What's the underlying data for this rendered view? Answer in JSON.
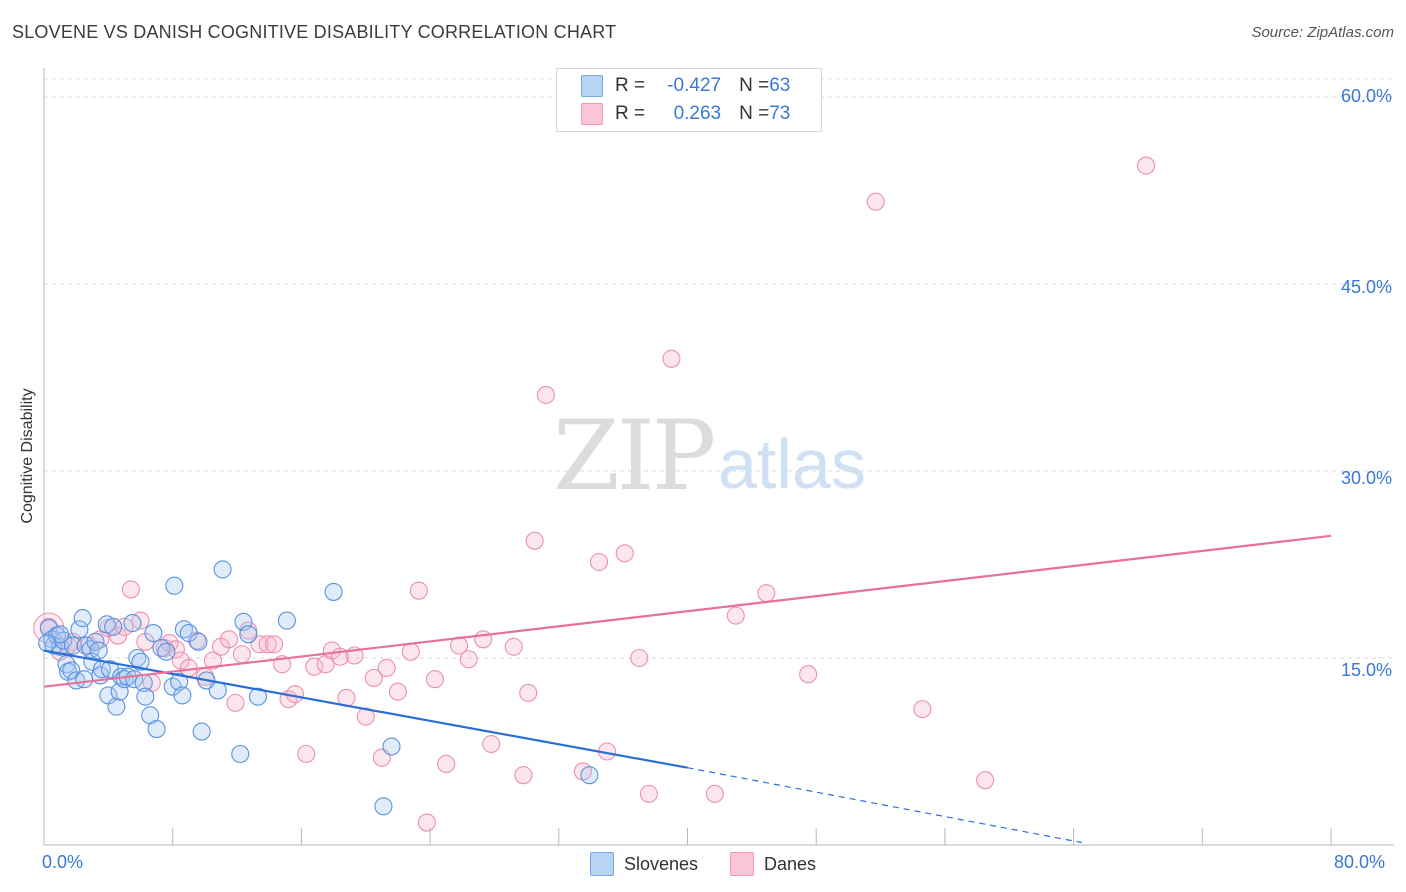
{
  "header": {
    "title": "SLOVENE VS DANISH COGNITIVE DISABILITY CORRELATION CHART",
    "source": "Source: ZipAtlas.com"
  },
  "watermark": {
    "zip": "ZIP",
    "atlas": "atlas"
  },
  "legend": {
    "rows": [
      {
        "r_label": "R = ",
        "r_value": "-0.427",
        "n_label": "N = ",
        "n_value": "63",
        "color": "#6fa2e8"
      },
      {
        "r_label": "R = ",
        "r_value": "0.263",
        "n_label": "N = ",
        "n_value": "73",
        "color": "#f2a1bb"
      }
    ]
  },
  "bottom_legend": {
    "series1": "Slovenes",
    "series2": "Danes"
  },
  "chart_data": {
    "type": "scatter",
    "title": "SLOVENE VS DANISH COGNITIVE DISABILITY CORRELATION CHART",
    "xlabel": "",
    "ylabel": "Cognitive Disability",
    "xlim": [
      0,
      80
    ],
    "ylim": [
      0,
      62
    ],
    "x_tick_labels": [
      "0.0%",
      "80.0%"
    ],
    "y_ticks": [
      15,
      30,
      45,
      60
    ],
    "y_tick_labels": [
      "15.0%",
      "30.0%",
      "45.0%",
      "60.0%"
    ],
    "grid": true,
    "series": [
      {
        "name": "Slovenes",
        "color": "#6fa2e8",
        "line_color": "#2a6fd6",
        "trend": {
          "x0": 0,
          "y0": 15.6,
          "x1": 40,
          "y1": 6.2,
          "dash_to_x": 64.5,
          "dash_to_y": 0.2
        },
        "points": [
          [
            0.3,
            17.4
          ],
          [
            0.5,
            16.5
          ],
          [
            0.6,
            16.0
          ],
          [
            0.8,
            16.8
          ],
          [
            1.0,
            15.9
          ],
          [
            1.2,
            16.4
          ],
          [
            1.4,
            14.5
          ],
          [
            1.5,
            13.9
          ],
          [
            1.7,
            14.0
          ],
          [
            1.8,
            16.0
          ],
          [
            2.0,
            13.2
          ],
          [
            2.2,
            17.3
          ],
          [
            2.4,
            18.2
          ],
          [
            2.5,
            13.3
          ],
          [
            2.6,
            16.0
          ],
          [
            2.9,
            15.7
          ],
          [
            3.0,
            14.7
          ],
          [
            3.2,
            16.3
          ],
          [
            3.4,
            15.6
          ],
          [
            3.5,
            13.6
          ],
          [
            3.6,
            14.1
          ],
          [
            3.9,
            17.7
          ],
          [
            4.0,
            12.0
          ],
          [
            4.1,
            14.1
          ],
          [
            4.3,
            17.5
          ],
          [
            4.5,
            11.1
          ],
          [
            4.7,
            12.3
          ],
          [
            4.8,
            13.5
          ],
          [
            5.0,
            13.3
          ],
          [
            5.2,
            13.5
          ],
          [
            5.5,
            17.8
          ],
          [
            5.6,
            13.3
          ],
          [
            5.8,
            15.0
          ],
          [
            6.0,
            14.7
          ],
          [
            6.2,
            13.0
          ],
          [
            6.3,
            11.9
          ],
          [
            6.6,
            10.4
          ],
          [
            6.8,
            17.0
          ],
          [
            7.0,
            9.3
          ],
          [
            7.3,
            15.8
          ],
          [
            7.6,
            15.5
          ],
          [
            8.0,
            12.7
          ],
          [
            8.1,
            20.8
          ],
          [
            8.4,
            13.1
          ],
          [
            8.6,
            12.0
          ],
          [
            8.7,
            17.3
          ],
          [
            9.0,
            17.0
          ],
          [
            9.6,
            16.3
          ],
          [
            9.8,
            9.1
          ],
          [
            10.1,
            13.2
          ],
          [
            10.8,
            12.4
          ],
          [
            11.1,
            22.1
          ],
          [
            12.2,
            7.3
          ],
          [
            12.4,
            17.9
          ],
          [
            12.7,
            16.9
          ],
          [
            13.3,
            11.9
          ],
          [
            15.1,
            18.0
          ],
          [
            18.0,
            20.3
          ],
          [
            21.1,
            3.1
          ],
          [
            21.6,
            7.9
          ],
          [
            33.9,
            5.6
          ],
          [
            1.0,
            16.9
          ],
          [
            0.2,
            16.2
          ]
        ]
      },
      {
        "name": "Danes",
        "color": "#f2a1bb",
        "line_color": "#e8709a",
        "trend": {
          "x0": 0,
          "y0": 12.7,
          "x1": 80,
          "y1": 24.8
        },
        "points": [
          [
            0.3,
            17.5
          ],
          [
            1.0,
            15.5
          ],
          [
            1.8,
            16.3
          ],
          [
            2.8,
            16.0
          ],
          [
            3.5,
            16.5
          ],
          [
            4.0,
            17.4
          ],
          [
            4.6,
            16.8
          ],
          [
            5.0,
            17.5
          ],
          [
            5.4,
            20.5
          ],
          [
            6.0,
            18.0
          ],
          [
            6.3,
            16.3
          ],
          [
            6.7,
            13.0
          ],
          [
            7.5,
            15.8
          ],
          [
            7.8,
            16.2
          ],
          [
            8.2,
            15.7
          ],
          [
            8.5,
            14.8
          ],
          [
            9.0,
            14.2
          ],
          [
            9.5,
            16.4
          ],
          [
            10.0,
            13.5
          ],
          [
            10.5,
            14.8
          ],
          [
            11.0,
            15.9
          ],
          [
            11.5,
            16.5
          ],
          [
            11.9,
            11.4
          ],
          [
            12.3,
            15.3
          ],
          [
            12.7,
            17.2
          ],
          [
            13.4,
            16.1
          ],
          [
            13.9,
            16.1
          ],
          [
            14.3,
            16.1
          ],
          [
            14.8,
            14.5
          ],
          [
            15.2,
            11.7
          ],
          [
            15.6,
            12.1
          ],
          [
            16.3,
            7.3
          ],
          [
            16.8,
            14.3
          ],
          [
            17.5,
            14.5
          ],
          [
            17.9,
            15.6
          ],
          [
            18.4,
            15.1
          ],
          [
            18.8,
            11.8
          ],
          [
            19.3,
            15.2
          ],
          [
            20.0,
            10.3
          ],
          [
            20.5,
            13.4
          ],
          [
            21.0,
            7.0
          ],
          [
            21.3,
            14.2
          ],
          [
            22.0,
            12.3
          ],
          [
            22.8,
            15.5
          ],
          [
            23.3,
            20.4
          ],
          [
            23.8,
            1.8
          ],
          [
            24.3,
            13.3
          ],
          [
            25.0,
            6.5
          ],
          [
            25.8,
            16.0
          ],
          [
            26.4,
            14.9
          ],
          [
            27.3,
            16.5
          ],
          [
            27.8,
            8.1
          ],
          [
            29.2,
            15.9
          ],
          [
            29.8,
            5.6
          ],
          [
            30.1,
            12.2
          ],
          [
            30.5,
            24.4
          ],
          [
            31.2,
            36.1
          ],
          [
            33.5,
            5.9
          ],
          [
            34.5,
            22.7
          ],
          [
            35.0,
            7.5
          ],
          [
            36.1,
            23.4
          ],
          [
            37.0,
            15.0
          ],
          [
            37.6,
            4.1
          ],
          [
            39.0,
            39.0
          ],
          [
            41.7,
            4.1
          ],
          [
            43.0,
            18.4
          ],
          [
            44.9,
            20.2
          ],
          [
            47.5,
            13.7
          ],
          [
            51.7,
            51.6
          ],
          [
            54.6,
            10.9
          ],
          [
            58.5,
            5.2
          ],
          [
            68.5,
            54.5
          ],
          [
            1.5,
            16.0
          ]
        ]
      }
    ]
  }
}
